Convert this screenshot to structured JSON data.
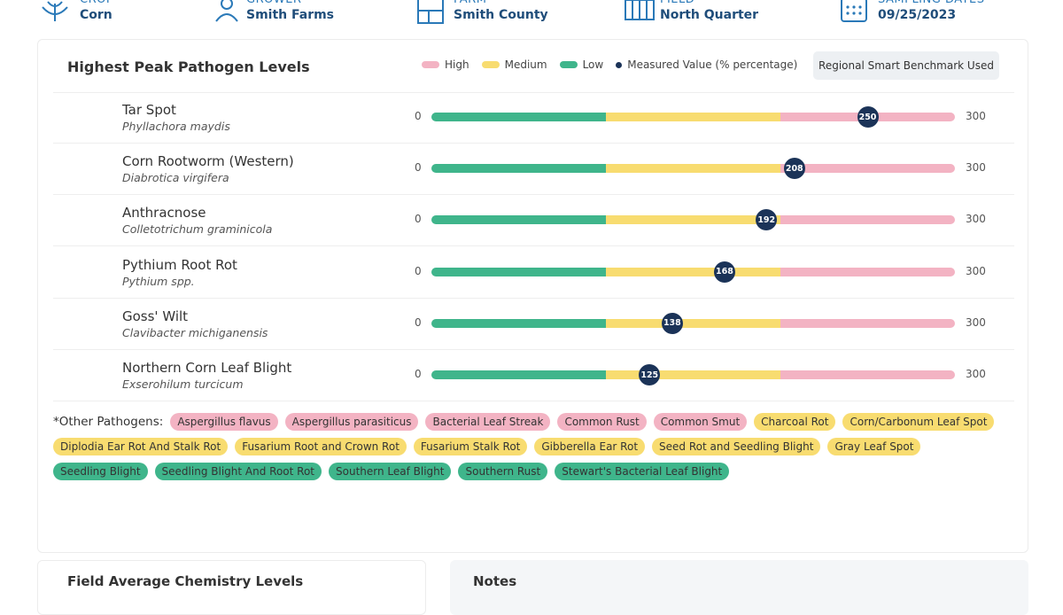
{
  "header": [
    {
      "label": "CROP",
      "value": "Corn"
    },
    {
      "label": "GROWER",
      "value": "Smith Farms"
    },
    {
      "label": "FARM",
      "value": "Smith County"
    },
    {
      "label": "FIELD",
      "value": "North Quarter"
    },
    {
      "label": "SAMPLING DATES",
      "value": "09/25/2023"
    }
  ],
  "pathogens": {
    "title": "Highest Peak Pathogen Levels",
    "legend": [
      {
        "name": "High",
        "color": "#f3b3c3"
      },
      {
        "name": "Medium",
        "color": "#f8dc70"
      },
      {
        "name": "Low",
        "color": "#3fb58b"
      },
      {
        "name": "Measured Value (% percentage)",
        "color": "#1b3358"
      }
    ],
    "benchmark_button": "Regional Smart Benchmark Used",
    "scale": {
      "min": 0,
      "max": 300
    },
    "rows": [
      {
        "name": "Tar Spot",
        "scientific": "Phyllachora maydis",
        "value": 250
      },
      {
        "name": "Corn Rootworm (Western)",
        "scientific": "Diabrotica virgifera",
        "value": 208
      },
      {
        "name": "Anthracnose",
        "scientific": "Colletotrichum graminicola",
        "value": 192
      },
      {
        "name": "Pythium Root Rot",
        "scientific": "Pythium spp.",
        "value": 168
      },
      {
        "name": "Goss' Wilt",
        "scientific": "Clavibacter michiganensis",
        "value": 138
      },
      {
        "name": "Northern Corn Leaf Blight",
        "scientific": "Exserohilum turcicum",
        "value": 125
      }
    ]
  },
  "other_pathogens": {
    "label": "*Other Pathogens:",
    "high": [
      "Aspergillus flavus",
      "Aspergillus parasiticus",
      "Bacterial Leaf Streak",
      "Common Rust",
      "Common Smut"
    ],
    "medium": [
      "Charcoal Rot",
      "Corn/Carbonum Leaf Spot",
      "Diplodia Ear Rot And Stalk Rot",
      "Fusarium Root and Crown Rot",
      "Fusarium Stalk Rot",
      "Gibberella Ear Rot",
      "Seed Rot and Seedling Blight",
      "Gray Leaf Spot"
    ],
    "low": [
      "Seedling Blight",
      "Seedling Blight And Root Rot",
      "Southern Leaf Blight",
      "Southern Rust",
      "Stewart's Bacterial Leaf Blight"
    ]
  },
  "chemistry": {
    "title": "Field Average Chemistry Levels"
  },
  "notes": {
    "title": "Notes"
  }
}
